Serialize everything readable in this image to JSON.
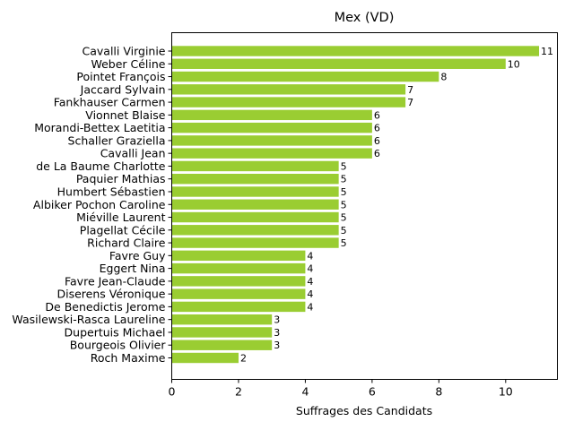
{
  "chart_data": {
    "type": "bar",
    "orientation": "horizontal",
    "title": "Mex (VD)",
    "xlabel": "Suffrages des Candidats",
    "ylabel": "",
    "xlim": [
      0,
      11.55
    ],
    "xticks": [
      0,
      2,
      4,
      6,
      8,
      10
    ],
    "grid": false,
    "bar_color": "#9acd32",
    "categories": [
      "Cavalli Virginie",
      "Weber Céline",
      "Pointet François",
      "Jaccard Sylvain",
      "Fankhauser Carmen",
      "Vionnet Blaise",
      "Morandi-Bettex Laetitia",
      "Schaller Graziella",
      "Cavalli Jean",
      "de La Baume Charlotte",
      "Paquier Mathias",
      "Humbert Sébastien",
      "Albiker Pochon Caroline",
      "Miéville Laurent",
      "Plagellat Cécile",
      "Richard Claire",
      "Favre Guy",
      "Eggert Nina",
      "Favre Jean-Claude",
      "Diserens Véronique",
      "De Benedictis Jerome",
      "Wasilewski-Rasca Laureline",
      "Dupertuis Michael",
      "Bourgeois Olivier",
      "Roch Maxime"
    ],
    "values": [
      11,
      10,
      8,
      7,
      7,
      6,
      6,
      6,
      6,
      5,
      5,
      5,
      5,
      5,
      5,
      5,
      4,
      4,
      4,
      4,
      4,
      3,
      3,
      3,
      2
    ]
  }
}
